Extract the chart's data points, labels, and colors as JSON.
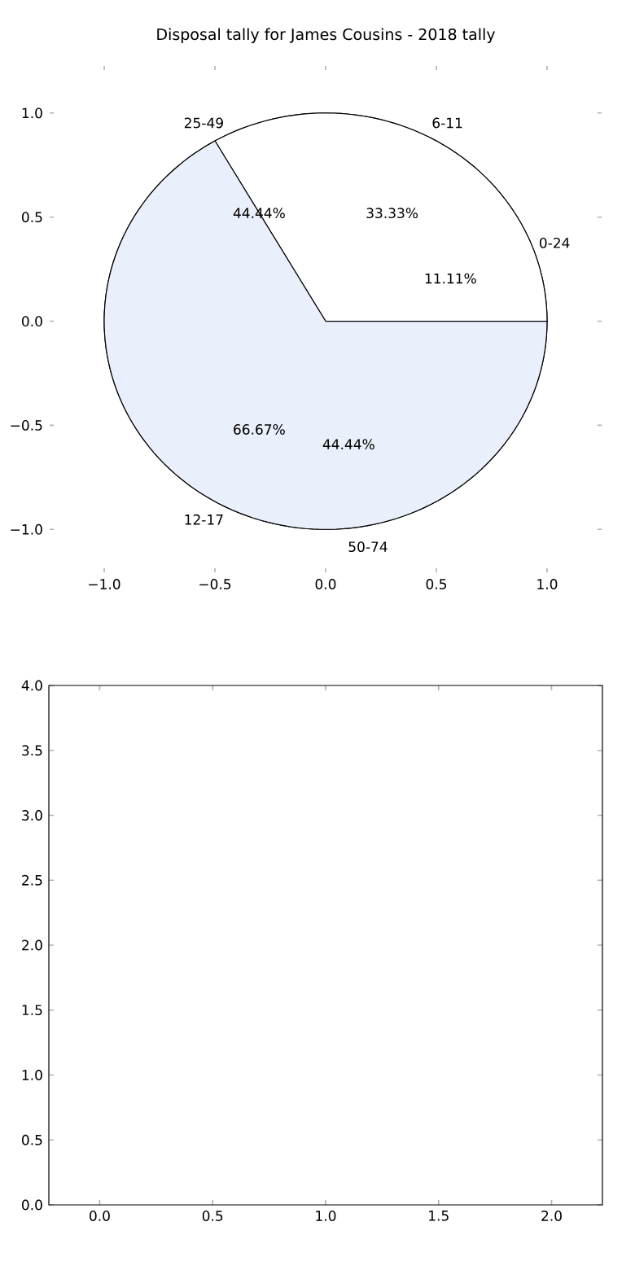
{
  "chart_data": [
    {
      "type": "scatter",
      "title": "Disposal tally for James Cousins - 2018 tally",
      "xlim": [
        -1.25,
        1.25
      ],
      "ylim": [
        -1.21,
        1.23
      ],
      "xticks": [
        {
          "value": -1,
          "label": "−1.0"
        },
        {
          "value": -0.5,
          "label": "−0.5"
        },
        {
          "value": 0,
          "label": "0.0"
        },
        {
          "value": 0.5,
          "label": "0.5"
        },
        {
          "value": 1,
          "label": "1.0"
        }
      ],
      "yticks": [
        {
          "value": -1,
          "label": "−1.0"
        },
        {
          "value": -0.5,
          "label": "−0.5"
        },
        {
          "value": 0,
          "label": "0.0"
        },
        {
          "value": 0.5,
          "label": "0.5"
        },
        {
          "value": 1,
          "label": "1.0"
        }
      ]
    },
    {
      "type": "pie",
      "categories": [
        "6-11",
        "12-17"
      ],
      "values": [
        33.33,
        66.67
      ],
      "colors": [
        "#ffffff",
        "#eaf0fb"
      ],
      "value_labels": [
        "33.33%",
        "66.67%"
      ]
    },
    {
      "type": "pie",
      "categories": [
        "0-24",
        "25-49",
        "50-74"
      ],
      "values": [
        11.11,
        44.44,
        44.44
      ],
      "colors": [
        "#ffffff",
        "#eaf0fb",
        "#d0def5"
      ],
      "value_labels": [
        "11.11%",
        "44.44%",
        "44.44%"
      ]
    },
    {
      "type": "scatter",
      "xlim": [
        -0.225,
        2.225
      ],
      "ylim": [
        0,
        4
      ],
      "xticks": [
        {
          "value": 0,
          "label": "0.0"
        },
        {
          "value": 0.5,
          "label": "0.5"
        },
        {
          "value": 1,
          "label": "1.0"
        },
        {
          "value": 1.5,
          "label": "1.5"
        },
        {
          "value": 2,
          "label": "2.0"
        }
      ],
      "yticks": [
        {
          "value": 0,
          "label": "0.0"
        },
        {
          "value": 0.5,
          "label": "0.5"
        },
        {
          "value": 1,
          "label": "1.0"
        },
        {
          "value": 1.5,
          "label": "1.5"
        },
        {
          "value": 2,
          "label": "2.0"
        },
        {
          "value": 2.5,
          "label": "2.5"
        },
        {
          "value": 3,
          "label": "3.0"
        },
        {
          "value": 3.5,
          "label": "3.5"
        },
        {
          "value": 4,
          "label": "4.0"
        }
      ]
    }
  ]
}
